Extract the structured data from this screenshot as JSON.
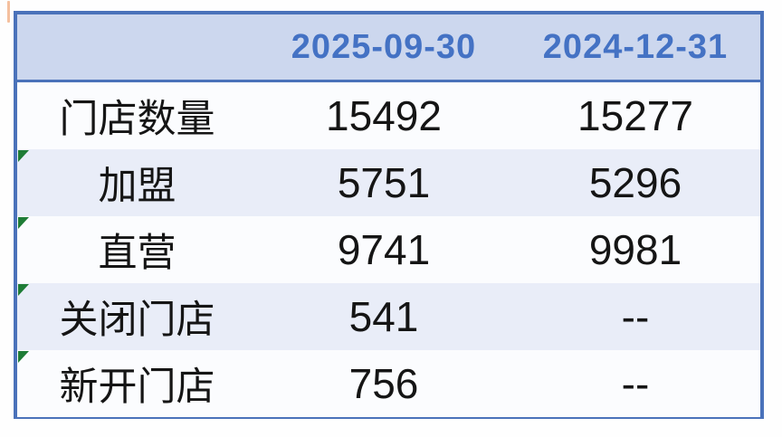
{
  "page": {
    "background": "#fefefe",
    "artifact_mark_color": "#ec823e"
  },
  "colors": {
    "border_blue": "#4a72ba",
    "header_bg": "#ccd7ee",
    "header_text": "#4472c4",
    "row_bg": "#fbfcfe",
    "row_alt_bg": "#e9edf8",
    "body_text": "#151515",
    "indicator_green": "#1e7c36"
  },
  "table": {
    "columns": [
      "",
      "2025-09-30",
      "2024-12-31"
    ],
    "rows": [
      {
        "label": "门店数量",
        "v1": "15492",
        "v2": "15277",
        "indicator": false
      },
      {
        "label": "加盟",
        "v1": "5751",
        "v2": "5296",
        "indicator": true
      },
      {
        "label": "直营",
        "v1": "9741",
        "v2": "9981",
        "indicator": true
      },
      {
        "label": "关闭门店",
        "v1": "541",
        "v2": "--",
        "indicator": true
      },
      {
        "label": "新开门店",
        "v1": "756",
        "v2": "--",
        "indicator": true
      }
    ]
  },
  "chart_data": {
    "type": "table",
    "title": "",
    "columns": [
      "",
      "2025-09-30",
      "2024-12-31"
    ],
    "rows": [
      [
        "门店数量",
        15492,
        15277
      ],
      [
        "加盟",
        5751,
        5296
      ],
      [
        "直营",
        9741,
        9981
      ],
      [
        "关闭门店",
        541,
        "--"
      ],
      [
        "新开门店",
        756,
        "--"
      ]
    ],
    "notes": "green corner indicators on rows 2-5"
  }
}
